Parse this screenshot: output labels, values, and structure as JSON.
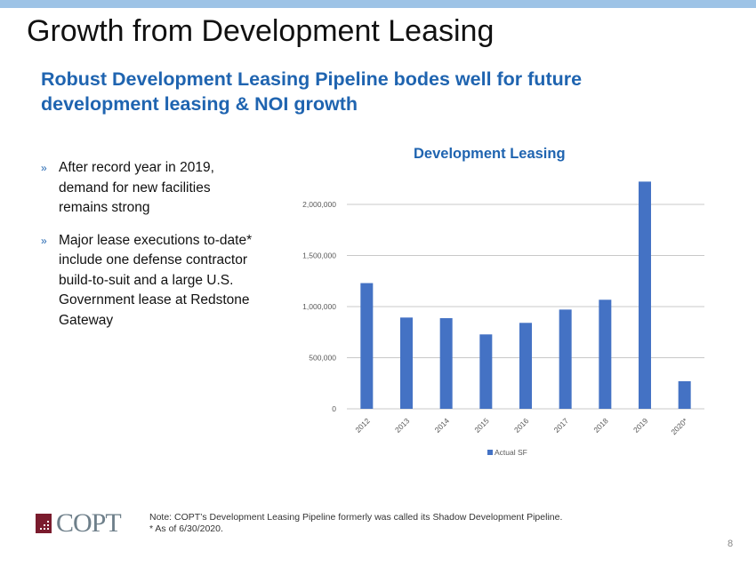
{
  "title": "Growth from Development Leasing",
  "subtitle": "Robust Development Leasing Pipeline bodes well for future development leasing & NOI growth",
  "bullets": [
    "After record year in 2019, demand for new facilities remains strong",
    "Major lease executions to-date* include one defense contractor build-to-suit and a large U.S. Government lease at Redstone Gateway"
  ],
  "bullet_mark": "»",
  "logo_text": "COPT",
  "note_line1": "Note: COPT’s Development Leasing Pipeline formerly was called its Shadow Development Pipeline.",
  "note_line2": "* As of 6/30/2020.",
  "page_number": "8",
  "colors": {
    "accent": "#1f64b0",
    "bar": "#4472c4",
    "logo": "#7a1b2d"
  },
  "chart_data": {
    "type": "bar",
    "title": "Development Leasing",
    "categories": [
      "2012",
      "2013",
      "2014",
      "2015",
      "2016",
      "2017",
      "2018",
      "2019",
      "2020*"
    ],
    "series": [
      {
        "name": "Actual SF",
        "values": [
          1230000,
          893000,
          887000,
          728000,
          841000,
          971000,
          1067000,
          2223000,
          270000
        ]
      }
    ],
    "ylim": [
      0,
      2250000
    ],
    "yticks": [
      0,
      500000,
      1000000,
      1500000,
      2000000
    ],
    "ytick_labels": [
      "0",
      "500,000",
      "1,000,000",
      "1,500,000",
      "2,000,000"
    ],
    "grid": true,
    "legend": "bottom"
  }
}
